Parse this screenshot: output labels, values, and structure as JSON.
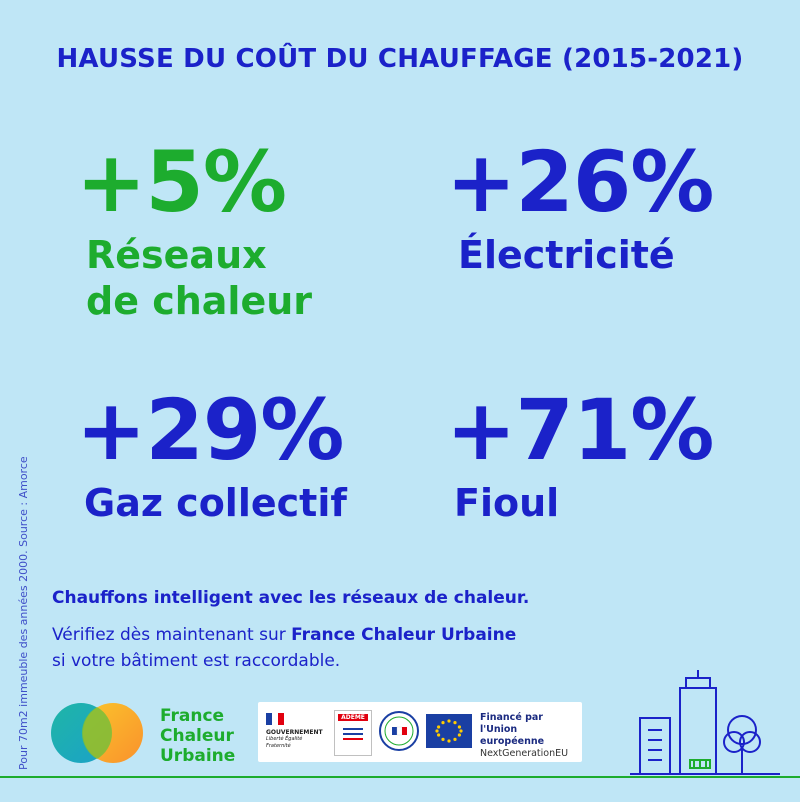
{
  "title": "HAUSSE DU COÛT DU CHAUFFAGE (2015-2021)",
  "stats": [
    {
      "value": "+5%",
      "label_line1": "Réseaux",
      "label_line2": "de chaleur",
      "color": "#1dac2e"
    },
    {
      "value": "+26%",
      "label_line1": "Électricité",
      "label_line2": "",
      "color": "#1b22c9"
    },
    {
      "value": "+29%",
      "label_line1": "Gaz collectif",
      "label_line2": "",
      "color": "#1b22c9"
    },
    {
      "value": "+71%",
      "label_line1": "Fioul",
      "label_line2": "",
      "color": "#1b22c9"
    }
  ],
  "cta": {
    "headline": "Chauffons intelligent avec les réseaux de chaleur.",
    "line_prefix": "Vérifiez dès maintenant sur ",
    "line_brand": "France Chaleur Urbaine",
    "line_suffix": "si votre bâtiment est  raccordable."
  },
  "side_note": "Pour 70m2 immeuble des années 2000. Source : Amorce",
  "brand": {
    "line1": "France",
    "line2": "Chaleur",
    "line3": "Urbaine"
  },
  "partners": {
    "gov": "GOUVERNEMENT",
    "gov_motto": "Liberté Égalité Fraternité",
    "ademe": "ADEME",
    "relance": "FRANCE RELANCE",
    "eu_line1": "Financé par",
    "eu_line2": "l'Union européenne",
    "eu_line3": "NextGenerationEU"
  },
  "colors": {
    "background": "#bfe6f6",
    "blue": "#1b22c9",
    "green": "#1dac2e"
  }
}
